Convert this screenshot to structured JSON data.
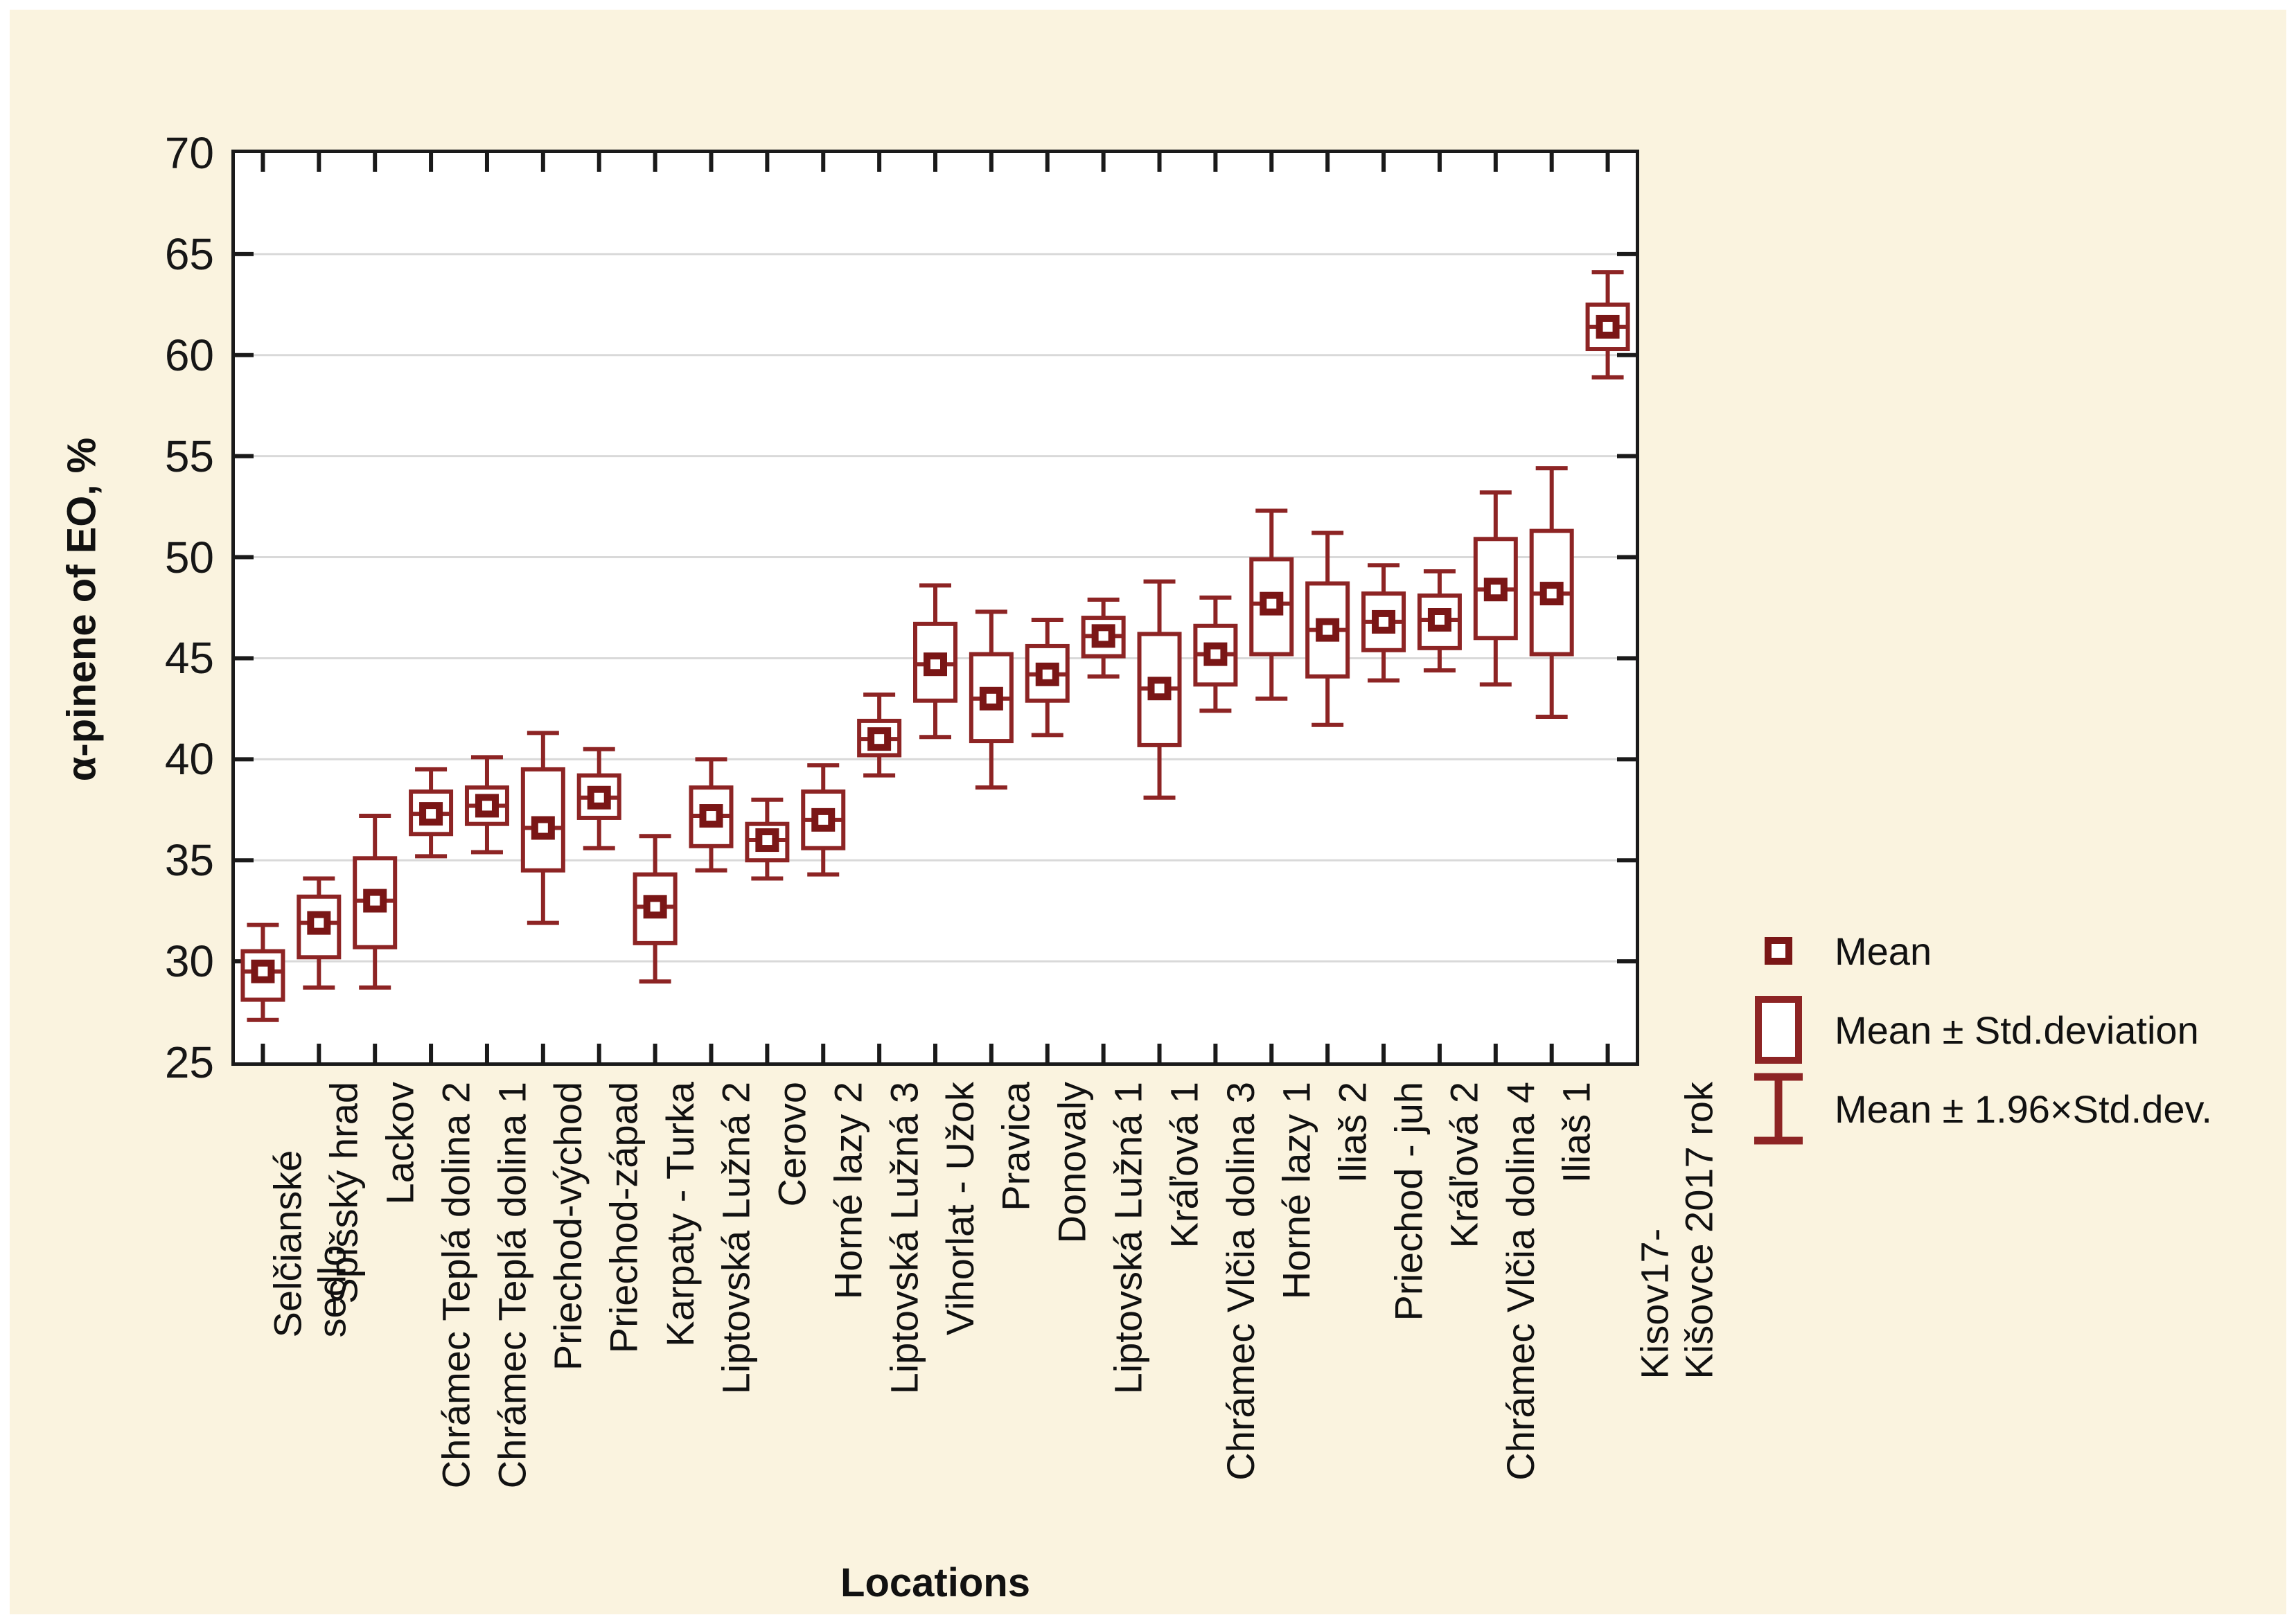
{
  "figure": {
    "background": "#faf3df"
  },
  "colors": {
    "series": "#8d2424",
    "series_dark": "#7a1616",
    "axis": "#1a1a1a",
    "grid": "#d9d9d9",
    "plot_background": "#ffffff",
    "page_background": "#faf3df"
  },
  "legend": {
    "items": [
      {
        "icon": "mean-marker",
        "label": "Mean"
      },
      {
        "icon": "std-box",
        "label": "Mean ± Std.deviation"
      },
      {
        "icon": "whisker-bar",
        "label": "Mean ± 1.96×Std.dev."
      }
    ]
  },
  "chart_data": {
    "type": "box",
    "title": "",
    "xlabel": "Locations",
    "ylabel": "α-pinene of EO, %",
    "ylim": [
      25,
      70
    ],
    "yticks": [
      25,
      30,
      35,
      40,
      45,
      50,
      55,
      60,
      65,
      70
    ],
    "grid": "horizontal",
    "legend_position": "right",
    "box_style": {
      "center": "mean",
      "box": "mean ± std.deviation",
      "whisker": "mean ± 1.96×std.dev."
    },
    "categories": [
      "Selčianské sedlo",
      "Spišský hrad",
      "Lackov",
      "Chrámec Teplá dolina 2",
      "Chrámec Teplá dolina 1",
      "Priechod-východ",
      "Priechod-západ",
      "Karpaty - Turka",
      "Liptovská Lužná 2",
      "Cerovo",
      "Horné lazy 2",
      "Liptovská Lužná 3",
      "Vihorlat - Užok",
      "Pravica",
      "Donovaly",
      "Liptovská Lužná 1",
      "Kráľová 1",
      "Chrámec Vlčia dolina 3",
      "Horné lazy 1",
      "Iliaš 2",
      "Priechod - juh",
      "Kráľová 2",
      "Chrámec Vlčia dolina 4",
      "Iliaš 1",
      "Kisov17-\nKišovce 2017 rok"
    ],
    "series": [
      {
        "name": "Selčianské sedlo",
        "mean": 29.5,
        "box_low": 28.1,
        "box_high": 30.5,
        "whisker_low": 27.1,
        "whisker_high": 31.8
      },
      {
        "name": "Spišský hrad",
        "mean": 31.9,
        "box_low": 30.2,
        "box_high": 33.2,
        "whisker_low": 28.7,
        "whisker_high": 34.1
      },
      {
        "name": "Lackov",
        "mean": 33.0,
        "box_low": 30.7,
        "box_high": 35.1,
        "whisker_low": 28.7,
        "whisker_high": 37.2
      },
      {
        "name": "Chrámec Teplá dolina 2",
        "mean": 37.3,
        "box_low": 36.3,
        "box_high": 38.4,
        "whisker_low": 35.2,
        "whisker_high": 39.5
      },
      {
        "name": "Chrámec Teplá dolina 1",
        "mean": 37.7,
        "box_low": 36.8,
        "box_high": 38.6,
        "whisker_low": 35.4,
        "whisker_high": 40.1
      },
      {
        "name": "Priechod-východ",
        "mean": 36.6,
        "box_low": 34.5,
        "box_high": 39.5,
        "whisker_low": 31.9,
        "whisker_high": 41.3
      },
      {
        "name": "Priechod-západ",
        "mean": 38.1,
        "box_low": 37.1,
        "box_high": 39.2,
        "whisker_low": 35.6,
        "whisker_high": 40.5
      },
      {
        "name": "Karpaty - Turka",
        "mean": 32.7,
        "box_low": 30.9,
        "box_high": 34.3,
        "whisker_low": 29.0,
        "whisker_high": 36.2
      },
      {
        "name": "Liptovská Lužná 2",
        "mean": 37.2,
        "box_low": 35.7,
        "box_high": 38.6,
        "whisker_low": 34.5,
        "whisker_high": 40.0
      },
      {
        "name": "Cerovo",
        "mean": 36.0,
        "box_low": 35.0,
        "box_high": 36.8,
        "whisker_low": 34.1,
        "whisker_high": 38.0
      },
      {
        "name": "Horné lazy 2",
        "mean": 37.0,
        "box_low": 35.6,
        "box_high": 38.4,
        "whisker_low": 34.3,
        "whisker_high": 39.7
      },
      {
        "name": "Liptovská Lužná 3",
        "mean": 41.0,
        "box_low": 40.2,
        "box_high": 41.9,
        "whisker_low": 39.2,
        "whisker_high": 43.2
      },
      {
        "name": "Vihorlat - Užok",
        "mean": 44.7,
        "box_low": 42.9,
        "box_high": 46.7,
        "whisker_low": 41.1,
        "whisker_high": 48.6
      },
      {
        "name": "Pravica",
        "mean": 43.0,
        "box_low": 40.9,
        "box_high": 45.2,
        "whisker_low": 38.6,
        "whisker_high": 47.3
      },
      {
        "name": "Donovaly",
        "mean": 44.2,
        "box_low": 42.9,
        "box_high": 45.6,
        "whisker_low": 41.2,
        "whisker_high": 46.9
      },
      {
        "name": "Liptovská Lužná 1",
        "mean": 46.1,
        "box_low": 45.1,
        "box_high": 47.0,
        "whisker_low": 44.1,
        "whisker_high": 47.9
      },
      {
        "name": "Kráľová 1",
        "mean": 43.5,
        "box_low": 40.7,
        "box_high": 46.2,
        "whisker_low": 38.1,
        "whisker_high": 48.8
      },
      {
        "name": "Chrámec Vlčia dolina 3",
        "mean": 45.2,
        "box_low": 43.7,
        "box_high": 46.6,
        "whisker_low": 42.4,
        "whisker_high": 48.0
      },
      {
        "name": "Horné lazy 1",
        "mean": 47.7,
        "box_low": 45.2,
        "box_high": 49.9,
        "whisker_low": 43.0,
        "whisker_high": 52.3
      },
      {
        "name": "Iliaš 2",
        "mean": 46.4,
        "box_low": 44.1,
        "box_high": 48.7,
        "whisker_low": 41.7,
        "whisker_high": 51.2
      },
      {
        "name": "Priechod - juh",
        "mean": 46.8,
        "box_low": 45.4,
        "box_high": 48.2,
        "whisker_low": 43.9,
        "whisker_high": 49.6
      },
      {
        "name": "Kráľová 2",
        "mean": 46.9,
        "box_low": 45.5,
        "box_high": 48.1,
        "whisker_low": 44.4,
        "whisker_high": 49.3
      },
      {
        "name": "Chrámec Vlčia dolina 4",
        "mean": 48.4,
        "box_low": 46.0,
        "box_high": 50.9,
        "whisker_low": 43.7,
        "whisker_high": 53.2
      },
      {
        "name": "Iliaš 1",
        "mean": 48.2,
        "box_low": 45.2,
        "box_high": 51.3,
        "whisker_low": 42.1,
        "whisker_high": 54.4
      },
      {
        "name": "Kisov17- Kišovce 2017 rok",
        "mean": 61.4,
        "box_low": 60.3,
        "box_high": 62.5,
        "whisker_low": 58.9,
        "whisker_high": 64.1
      }
    ]
  }
}
